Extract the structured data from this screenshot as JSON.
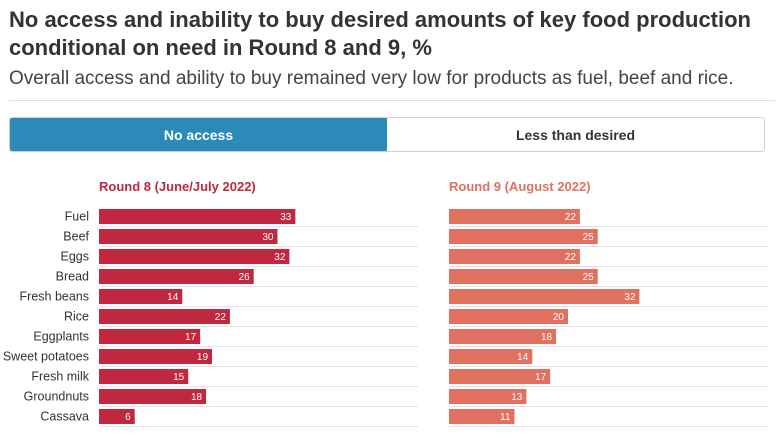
{
  "title": "No access and inability to buy desired amounts of key food production conditional on need in Round 8 and 9, %",
  "subtitle": "Overall access and ability to buy remained very low for products as fuel, beef and rice.",
  "tabs": [
    {
      "label": "No access",
      "active": true
    },
    {
      "label": "Less than desired",
      "active": false
    }
  ],
  "chart_data": {
    "type": "bar",
    "orientation": "horizontal",
    "categories": [
      "Fuel",
      "Beef",
      "Eggs",
      "Bread",
      "Fresh beans",
      "Rice",
      "Eggplants",
      "Sweet potatoes",
      "Fresh milk",
      "Groundnuts",
      "Cassava"
    ],
    "series": [
      {
        "name": "Round 8 (June/July 2022)",
        "color": "#c0283f",
        "values": [
          33,
          30,
          32,
          26,
          14,
          22,
          17,
          19,
          15,
          18,
          6
        ]
      },
      {
        "name": "Round 9 (August 2022)",
        "color": "#e07060",
        "values": [
          22,
          25,
          22,
          25,
          32,
          20,
          18,
          14,
          17,
          13,
          11
        ]
      }
    ],
    "grid": true
  }
}
